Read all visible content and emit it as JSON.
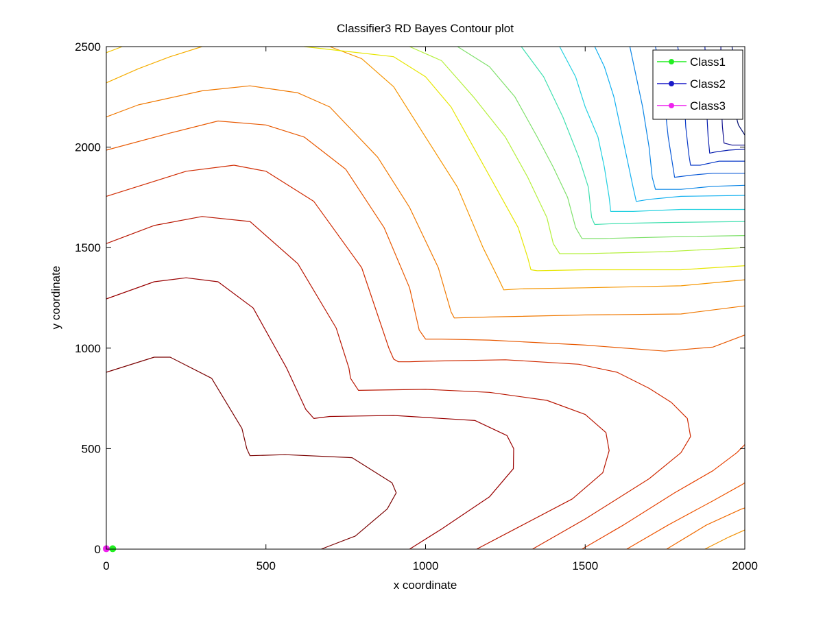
{
  "chart_data": {
    "type": "contour",
    "title": "Classifier3 RD Bayes Contour plot",
    "xlabel": "x coordinate",
    "ylabel": "y coordinate",
    "xlim": [
      0,
      2000
    ],
    "ylim": [
      0,
      2500
    ],
    "xticks": [
      0,
      500,
      1000,
      1500,
      2000
    ],
    "yticks": [
      0,
      500,
      1000,
      1500,
      2000,
      2500
    ],
    "xtick_labels": [
      "0",
      "500",
      "1000",
      "1500",
      "2000"
    ],
    "ytick_labels": [
      "0",
      "500",
      "1000",
      "1500",
      "2000",
      "2500"
    ],
    "grid": false,
    "colormap": "jet",
    "legend": {
      "location": "top-right",
      "entries": [
        {
          "label": "Class1",
          "color": "#22ee22"
        },
        {
          "label": "Class2",
          "color": "#1a1ac8"
        },
        {
          "label": "Class3",
          "color": "#ee22ee"
        }
      ]
    },
    "class_points": [
      {
        "series": "Class1",
        "color": "#22ee22",
        "points": [
          [
            20,
            2
          ]
        ]
      },
      {
        "series": "Class3",
        "color": "#ee22ee",
        "points": [
          [
            0,
            2
          ]
        ]
      }
    ],
    "contours": [
      {
        "color": "#7a0000",
        "points": [
          [
            673,
            0
          ],
          [
            780,
            65
          ],
          [
            880,
            200
          ],
          [
            908,
            280
          ],
          [
            895,
            330
          ],
          [
            770,
            455
          ],
          [
            560,
            470
          ],
          [
            450,
            465
          ],
          [
            440,
            500
          ],
          [
            425,
            600
          ],
          [
            330,
            850
          ],
          [
            200,
            955
          ],
          [
            150,
            955
          ],
          [
            0,
            880
          ]
        ]
      },
      {
        "color": "#990000",
        "points": [
          [
            950,
            0
          ],
          [
            1050,
            100
          ],
          [
            1200,
            260
          ],
          [
            1275,
            400
          ],
          [
            1276,
            500
          ],
          [
            1255,
            565
          ],
          [
            1155,
            640
          ],
          [
            900,
            665
          ],
          [
            700,
            660
          ],
          [
            650,
            650
          ],
          [
            625,
            695
          ],
          [
            565,
            900
          ],
          [
            460,
            1200
          ],
          [
            350,
            1330
          ],
          [
            250,
            1350
          ],
          [
            150,
            1330
          ],
          [
            0,
            1245
          ]
        ]
      },
      {
        "color": "#b81500",
        "points": [
          [
            1160,
            0
          ],
          [
            1280,
            100
          ],
          [
            1460,
            250
          ],
          [
            1555,
            380
          ],
          [
            1575,
            490
          ],
          [
            1565,
            580
          ],
          [
            1500,
            670
          ],
          [
            1380,
            740
          ],
          [
            1200,
            780
          ],
          [
            1000,
            795
          ],
          [
            790,
            790
          ],
          [
            765,
            850
          ],
          [
            760,
            900
          ],
          [
            720,
            1100
          ],
          [
            600,
            1420
          ],
          [
            450,
            1630
          ],
          [
            300,
            1655
          ],
          [
            150,
            1610
          ],
          [
            0,
            1520
          ]
        ]
      },
      {
        "color": "#d02a00",
        "points": [
          [
            1335,
            0
          ],
          [
            1500,
            150
          ],
          [
            1700,
            350
          ],
          [
            1800,
            480
          ],
          [
            1830,
            560
          ],
          [
            1820,
            650
          ],
          [
            1770,
            730
          ],
          [
            1700,
            800
          ],
          [
            1600,
            880
          ],
          [
            1480,
            920
          ],
          [
            1250,
            942
          ],
          [
            1000,
            935
          ],
          [
            950,
            932
          ],
          [
            915,
            932
          ],
          [
            900,
            945
          ],
          [
            885,
            1000
          ],
          [
            800,
            1400
          ],
          [
            650,
            1730
          ],
          [
            500,
            1880
          ],
          [
            400,
            1910
          ],
          [
            250,
            1880
          ],
          [
            0,
            1755
          ]
        ]
      },
      {
        "color": "#e64000",
        "points": [
          [
            1490,
            0
          ],
          [
            1620,
            120
          ],
          [
            1780,
            280
          ],
          [
            1900,
            390
          ],
          [
            1975,
            480
          ],
          [
            2000,
            520
          ]
        ]
      },
      {
        "color": "#ee5500",
        "points": [
          [
            1630,
            0
          ],
          [
            1760,
            120
          ],
          [
            1900,
            240
          ],
          [
            1990,
            320
          ],
          [
            2000,
            330
          ]
        ]
      },
      {
        "color": "#f06a00",
        "points": [
          [
            1755,
            0
          ],
          [
            1880,
            120
          ],
          [
            1990,
            200
          ],
          [
            2000,
            205
          ]
        ]
      },
      {
        "color": "#f09000",
        "points": [
          [
            1875,
            0
          ],
          [
            1950,
            60
          ],
          [
            2000,
            95
          ]
        ]
      },
      {
        "color": "#e85800",
        "points": [
          [
            2000,
            1065
          ],
          [
            1900,
            1005
          ],
          [
            1750,
            985
          ],
          [
            1500,
            1015
          ],
          [
            1200,
            1040
          ],
          [
            1050,
            1045
          ],
          [
            1000,
            1045
          ],
          [
            980,
            1090
          ],
          [
            950,
            1300
          ],
          [
            870,
            1600
          ],
          [
            750,
            1890
          ],
          [
            620,
            2050
          ],
          [
            500,
            2110
          ],
          [
            350,
            2130
          ],
          [
            200,
            2070
          ],
          [
            0,
            1985
          ]
        ]
      },
      {
        "color": "#f07800",
        "points": [
          [
            2000,
            1210
          ],
          [
            1800,
            1170
          ],
          [
            1500,
            1165
          ],
          [
            1200,
            1155
          ],
          [
            1090,
            1150
          ],
          [
            1080,
            1180
          ],
          [
            1040,
            1400
          ],
          [
            950,
            1700
          ],
          [
            850,
            1950
          ],
          [
            700,
            2200
          ],
          [
            600,
            2270
          ],
          [
            450,
            2305
          ],
          [
            300,
            2280
          ],
          [
            100,
            2210
          ],
          [
            0,
            2150
          ]
        ]
      },
      {
        "color": "#f59500",
        "points": [
          [
            2000,
            1340
          ],
          [
            1800,
            1310
          ],
          [
            1500,
            1300
          ],
          [
            1300,
            1295
          ],
          [
            1245,
            1290
          ],
          [
            1230,
            1340
          ],
          [
            1180,
            1500
          ],
          [
            1100,
            1800
          ],
          [
            1000,
            2050
          ],
          [
            900,
            2300
          ],
          [
            800,
            2440
          ],
          [
            700,
            2500
          ]
        ]
      },
      {
        "color": "#f5ad00",
        "points": [
          [
            300,
            2500
          ],
          [
            200,
            2450
          ],
          [
            100,
            2390
          ],
          [
            0,
            2320
          ]
        ]
      },
      {
        "color": "#f2c200",
        "points": [
          [
            0,
            2470
          ],
          [
            50,
            2500
          ]
        ]
      },
      {
        "color": "#e6e600",
        "points": [
          [
            2000,
            1410
          ],
          [
            1800,
            1390
          ],
          [
            1500,
            1390
          ],
          [
            1350,
            1385
          ],
          [
            1330,
            1390
          ],
          [
            1320,
            1450
          ],
          [
            1290,
            1600
          ],
          [
            1220,
            1800
          ],
          [
            1150,
            2000
          ],
          [
            1080,
            2200
          ],
          [
            1000,
            2350
          ],
          [
            900,
            2450
          ],
          [
            620,
            2500
          ]
        ]
      },
      {
        "color": "#b5f03c",
        "points": [
          [
            2000,
            1500
          ],
          [
            1750,
            1480
          ],
          [
            1500,
            1470
          ],
          [
            1420,
            1470
          ],
          [
            1400,
            1520
          ],
          [
            1380,
            1650
          ],
          [
            1320,
            1850
          ],
          [
            1250,
            2050
          ],
          [
            1150,
            2250
          ],
          [
            1050,
            2430
          ],
          [
            950,
            2500
          ]
        ]
      },
      {
        "color": "#7ee06a",
        "points": [
          [
            2000,
            1560
          ],
          [
            1800,
            1555
          ],
          [
            1550,
            1545
          ],
          [
            1490,
            1545
          ],
          [
            1470,
            1600
          ],
          [
            1445,
            1750
          ],
          [
            1400,
            1900
          ],
          [
            1350,
            2050
          ],
          [
            1280,
            2250
          ],
          [
            1200,
            2400
          ],
          [
            1100,
            2500
          ]
        ]
      },
      {
        "color": "#40e0b0",
        "points": [
          [
            2000,
            1630
          ],
          [
            1750,
            1625
          ],
          [
            1600,
            1620
          ],
          [
            1530,
            1615
          ],
          [
            1520,
            1650
          ],
          [
            1510,
            1800
          ],
          [
            1480,
            1950
          ],
          [
            1430,
            2150
          ],
          [
            1370,
            2350
          ],
          [
            1300,
            2500
          ]
        ]
      },
      {
        "color": "#22d0e0",
        "points": [
          [
            2000,
            1690
          ],
          [
            1800,
            1690
          ],
          [
            1650,
            1680
          ],
          [
            1580,
            1680
          ],
          [
            1575,
            1750
          ],
          [
            1560,
            1900
          ],
          [
            1540,
            2050
          ],
          [
            1500,
            2200
          ],
          [
            1470,
            2350
          ],
          [
            1420,
            2500
          ]
        ]
      },
      {
        "color": "#12b0f0",
        "points": [
          [
            2000,
            1760
          ],
          [
            1800,
            1755
          ],
          [
            1700,
            1740
          ],
          [
            1660,
            1730
          ],
          [
            1650,
            1800
          ],
          [
            1630,
            1950
          ],
          [
            1610,
            2100
          ],
          [
            1590,
            2250
          ],
          [
            1560,
            2400
          ],
          [
            1530,
            2500
          ]
        ]
      },
      {
        "color": "#0a85e6",
        "points": [
          [
            2000,
            1810
          ],
          [
            1900,
            1805
          ],
          [
            1800,
            1790
          ],
          [
            1720,
            1790
          ],
          [
            1710,
            1850
          ],
          [
            1700,
            2000
          ],
          [
            1680,
            2200
          ],
          [
            1660,
            2350
          ],
          [
            1640,
            2500
          ]
        ]
      },
      {
        "color": "#0a5ad8",
        "points": [
          [
            2000,
            1870
          ],
          [
            1900,
            1870
          ],
          [
            1830,
            1860
          ],
          [
            1780,
            1850
          ],
          [
            1775,
            1900
          ],
          [
            1760,
            2050
          ],
          [
            1750,
            2200
          ],
          [
            1740,
            2350
          ],
          [
            1720,
            2500
          ]
        ]
      },
      {
        "color": "#0a3ac8",
        "points": [
          [
            2000,
            1930
          ],
          [
            1920,
            1930
          ],
          [
            1860,
            1910
          ],
          [
            1830,
            1910
          ],
          [
            1825,
            1960
          ],
          [
            1815,
            2100
          ],
          [
            1810,
            2250
          ],
          [
            1800,
            2400
          ],
          [
            1790,
            2500
          ]
        ]
      },
      {
        "color": "#0a20b0",
        "points": [
          [
            2000,
            1990
          ],
          [
            1950,
            1985
          ],
          [
            1905,
            1975
          ],
          [
            1890,
            1970
          ],
          [
            1885,
            2050
          ],
          [
            1880,
            2200
          ],
          [
            1880,
            2350
          ],
          [
            1875,
            2500
          ]
        ]
      },
      {
        "color": "#101090",
        "points": [
          [
            2000,
            2010
          ],
          [
            1960,
            2010
          ],
          [
            1935,
            2020
          ],
          [
            1930,
            2100
          ],
          [
            1925,
            2250
          ],
          [
            1925,
            2400
          ],
          [
            1925,
            2500
          ]
        ]
      },
      {
        "color": "#000c70",
        "points": [
          [
            2000,
            2060
          ],
          [
            1980,
            2110
          ],
          [
            1970,
            2170
          ],
          [
            1970,
            2250
          ],
          [
            1965,
            2400
          ],
          [
            1960,
            2500
          ]
        ]
      }
    ]
  }
}
